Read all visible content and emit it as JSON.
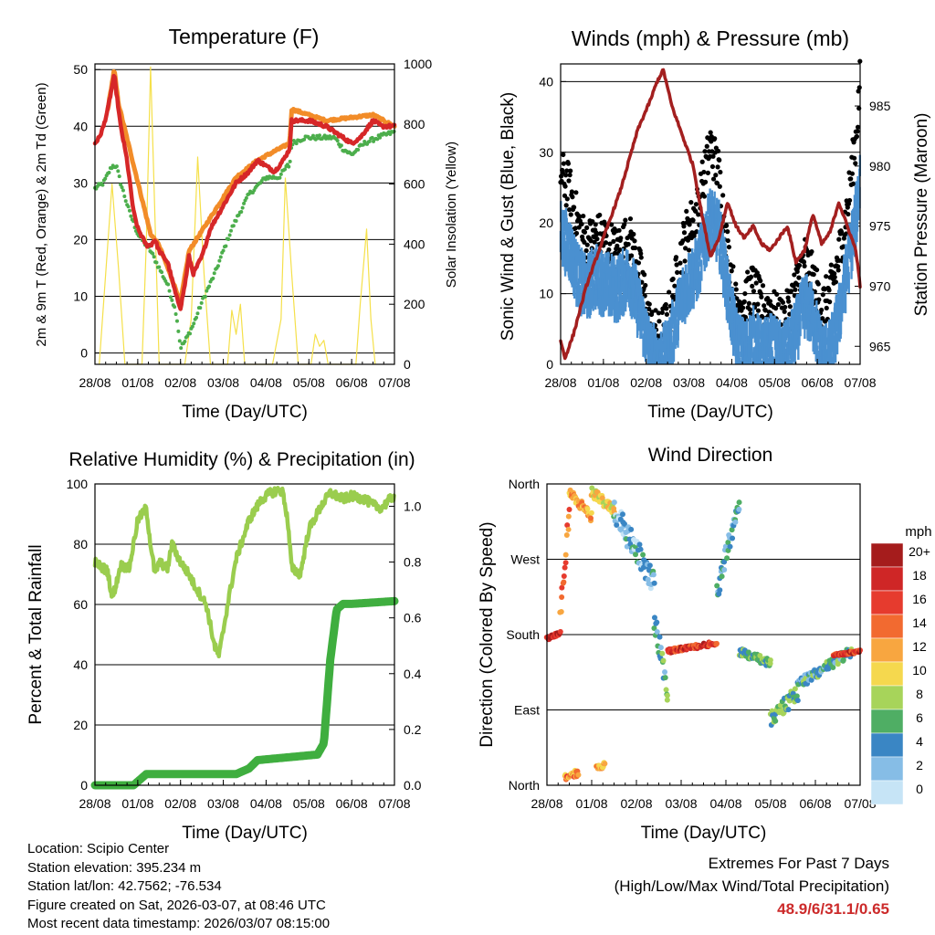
{
  "chart_data": [
    {
      "type": "line",
      "title": "Temperature (F)",
      "xlabel": "Time (Day/UTC)",
      "ylabel_left": "2m & 9m T (Red, Orange) & 2m Td (Green)",
      "ylabel_right": "Solar Insolation (Yellow)",
      "x_ticks": [
        "28/08",
        "01/08",
        "02/08",
        "03/08",
        "04/08",
        "05/08",
        "06/08",
        "07/08"
      ],
      "ylim_left": [
        -2,
        51
      ],
      "y_ticks_left": [
        0,
        10,
        20,
        30,
        40,
        50
      ],
      "ylim_right": [
        0,
        1000
      ],
      "y_ticks_right": [
        0,
        200,
        400,
        600,
        800,
        1000
      ],
      "series": [
        {
          "name": "2m T",
          "color": "#d62728",
          "axis": "left",
          "x": [
            0,
            0.1,
            0.2,
            0.3,
            0.45,
            0.55,
            0.6,
            0.75,
            0.9,
            1.0,
            1.2,
            1.3,
            1.4,
            1.5,
            1.7,
            1.8,
            1.9,
            2.0,
            2.1,
            2.2,
            2.3,
            2.5,
            2.7,
            3.0,
            3.3,
            3.6,
            3.8,
            4.0,
            4.2,
            4.4,
            4.55,
            4.6,
            5.0,
            5.4,
            5.6,
            5.8,
            6.0,
            6.2,
            6.5,
            6.7,
            7.0
          ],
          "y": [
            37,
            38,
            40,
            43,
            49,
            43,
            40,
            34,
            25,
            22,
            19,
            19,
            20,
            18,
            16,
            13,
            10,
            8,
            12,
            17,
            14,
            17,
            22,
            26,
            30,
            32,
            34,
            33,
            32,
            34,
            36,
            41,
            41,
            40,
            39,
            38,
            37,
            38,
            41,
            40,
            40
          ]
        },
        {
          "name": "9m T",
          "color": "#f28c28",
          "axis": "left",
          "x": [
            0.3,
            0.45,
            0.55,
            1.3,
            1.5,
            2.0,
            2.2,
            3.3,
            3.8,
            4.55,
            4.6,
            5.0,
            5.4,
            6.5,
            7.0
          ],
          "y": [
            43,
            50,
            44,
            21,
            19,
            9,
            18,
            31,
            34,
            37,
            43,
            42,
            41,
            42,
            40
          ]
        },
        {
          "name": "2m Td",
          "color": "#4cae4c",
          "axis": "left",
          "x": [
            0,
            0.2,
            0.4,
            0.5,
            0.6,
            0.8,
            1.0,
            1.3,
            1.5,
            1.7,
            1.9,
            2.0,
            2.1,
            2.3,
            2.5,
            2.8,
            3.2,
            3.6,
            4.0,
            4.3,
            4.5,
            4.55,
            4.6,
            4.9,
            5.2,
            5.6,
            5.8,
            6.0,
            6.3,
            6.6,
            7.0
          ],
          "y": [
            29,
            30,
            33,
            33,
            30,
            25,
            21,
            18,
            15,
            12,
            7,
            1,
            2,
            5,
            9,
            14,
            22,
            28,
            31,
            31,
            33,
            33,
            37,
            38,
            38,
            38,
            36,
            35,
            37,
            38,
            39
          ]
        },
        {
          "name": "Solar Insolation",
          "color": "#f5e04a",
          "axis": "right",
          "x": [
            0.1,
            0.25,
            0.4,
            0.55,
            0.7,
            1.1,
            1.2,
            1.3,
            1.4,
            1.5,
            1.6,
            2.1,
            2.25,
            2.4,
            2.55,
            2.7,
            3.1,
            3.2,
            3.3,
            3.4,
            3.5,
            4.15,
            4.35,
            4.45,
            4.6,
            4.75,
            5.05,
            5.15,
            5.25,
            5.35,
            5.45,
            6.1,
            6.2,
            6.35,
            6.45,
            6.55
          ],
          "y": [
            0,
            300,
            600,
            320,
            0,
            0,
            400,
            990,
            500,
            0,
            0,
            0,
            150,
            690,
            300,
            0,
            0,
            180,
            100,
            200,
            0,
            0,
            150,
            620,
            300,
            0,
            0,
            100,
            60,
            80,
            0,
            0,
            200,
            450,
            150,
            0
          ]
        }
      ]
    },
    {
      "type": "line",
      "title": "Winds (mph) & Pressure (mb)",
      "xlabel": "Time (Day/UTC)",
      "ylabel_left": "Sonic Wind & Gust (Blue, Black)",
      "ylabel_right": "Station Pressure (Maroon)",
      "x_ticks": [
        "28/08",
        "01/08",
        "02/08",
        "03/08",
        "04/08",
        "05/08",
        "06/08",
        "07/08"
      ],
      "ylim_left": [
        0,
        42.5
      ],
      "y_ticks_left": [
        0,
        10,
        20,
        30,
        40
      ],
      "ylim_right": [
        963.5,
        988.5
      ],
      "y_ticks_right": [
        965,
        970,
        975,
        980,
        985
      ],
      "series": [
        {
          "name": "Sonic Wind",
          "color": "#4a90d0",
          "axis": "left",
          "x": [
            0,
            0.2,
            0.4,
            0.6,
            0.8,
            1.0,
            1.3,
            1.6,
            1.9,
            2.1,
            2.3,
            2.5,
            2.7,
            2.9,
            3.2,
            3.5,
            3.7,
            3.9,
            4.1,
            4.3,
            4.5,
            4.7,
            4.9,
            5.1,
            5.3,
            5.5,
            5.7,
            5.9,
            6.1,
            6.3,
            6.5,
            6.7,
            6.9,
            7.0
          ],
          "y": [
            20,
            18,
            14,
            12,
            14,
            13,
            12,
            14,
            8,
            3,
            2,
            3,
            8,
            12,
            15,
            22,
            20,
            12,
            5,
            3,
            5,
            3,
            4,
            3,
            3,
            6,
            10,
            8,
            3,
            3,
            8,
            15,
            22,
            28
          ]
        },
        {
          "name": "Gust",
          "color": "#000000",
          "axis": "left",
          "x": [
            0,
            0.2,
            0.4,
            0.6,
            0.8,
            1.0,
            1.3,
            1.6,
            1.9,
            2.1,
            2.3,
            2.5,
            2.7,
            2.9,
            3.2,
            3.5,
            3.7,
            3.9,
            4.1,
            4.3,
            4.5,
            4.7,
            4.9,
            5.1,
            5.3,
            5.5,
            5.7,
            5.9,
            6.1,
            6.3,
            6.5,
            6.7,
            6.9,
            7.0
          ],
          "y": [
            27,
            25,
            20,
            17,
            18,
            18,
            16,
            18,
            12,
            5,
            4,
            6,
            12,
            18,
            22,
            31,
            27,
            16,
            8,
            9,
            11,
            8,
            8,
            6,
            7,
            11,
            15,
            12,
            8,
            10,
            15,
            22,
            32,
            40
          ]
        },
        {
          "name": "Station Pressure",
          "color": "#a31f1f",
          "axis": "right",
          "x": [
            0,
            0.1,
            0.3,
            0.6,
            1.0,
            1.4,
            1.8,
            2.1,
            2.25,
            2.4,
            2.6,
            2.9,
            3.1,
            3.3,
            3.5,
            3.7,
            3.9,
            4.1,
            4.3,
            4.5,
            4.7,
            4.9,
            5.1,
            5.3,
            5.5,
            5.7,
            5.9,
            6.1,
            6.3,
            6.5,
            6.7,
            6.9,
            7.0
          ],
          "y": [
            965.5,
            964,
            966,
            970,
            974,
            978,
            983,
            985.5,
            987,
            988,
            985,
            982,
            980,
            976,
            972.5,
            974,
            977,
            975,
            974,
            975,
            973.5,
            973,
            974,
            975,
            972,
            973,
            976,
            973.5,
            974.5,
            977,
            975,
            973,
            970
          ]
        }
      ]
    },
    {
      "type": "line",
      "title": "Relative Humidity (%) & Precipitation (in)",
      "xlabel": "Time (Day/UTC)",
      "ylabel_left": "Percent & Total Rainfall",
      "x_ticks": [
        "28/08",
        "01/08",
        "02/08",
        "03/08",
        "04/08",
        "05/08",
        "06/08",
        "07/08"
      ],
      "ylim_left": [
        0,
        100
      ],
      "y_ticks_left": [
        0,
        20,
        40,
        60,
        80,
        100
      ],
      "ylim_right": [
        0,
        1.08
      ],
      "y_ticks_right": [
        0.0,
        0.2,
        0.4,
        0.6,
        0.8,
        1.0
      ],
      "series": [
        {
          "name": "Relative Humidity",
          "color": "#9acd4e",
          "axis": "left",
          "x": [
            0,
            0.1,
            0.2,
            0.3,
            0.4,
            0.5,
            0.6,
            0.8,
            1.0,
            1.2,
            1.3,
            1.4,
            1.5,
            1.7,
            1.8,
            2.0,
            2.2,
            2.3,
            2.6,
            2.8,
            2.9,
            3.1,
            3.3,
            3.6,
            3.9,
            4.1,
            4.3,
            4.4,
            4.5,
            4.6,
            4.8,
            5.0,
            5.3,
            5.5,
            5.8,
            6.0,
            6.3,
            6.5,
            6.7,
            6.9,
            7.0
          ],
          "y": [
            74,
            73,
            72,
            71,
            62,
            67,
            73,
            72,
            88,
            92,
            80,
            70,
            74,
            72,
            80,
            74,
            70,
            67,
            60,
            46,
            43,
            60,
            75,
            88,
            95,
            97,
            98,
            97,
            88,
            72,
            70,
            85,
            93,
            97,
            95,
            96,
            95,
            93,
            92,
            95,
            96
          ]
        },
        {
          "name": "Total Precipitation",
          "color": "#3fae3f",
          "axis": "right",
          "x": [
            0,
            0.9,
            1.2,
            3.3,
            3.6,
            3.8,
            4.5,
            5.2,
            5.35,
            5.5,
            5.65,
            5.8,
            6.0,
            7.0
          ],
          "y": [
            0.0,
            0.0,
            0.04,
            0.04,
            0.06,
            0.09,
            0.1,
            0.11,
            0.15,
            0.45,
            0.63,
            0.65,
            0.65,
            0.66
          ]
        }
      ]
    },
    {
      "type": "scatter",
      "title": "Wind Direction",
      "xlabel": "Time (Day/UTC)",
      "ylabel": "Direction (Colored By Speed)",
      "x_ticks": [
        "28/08",
        "01/08",
        "02/08",
        "03/08",
        "04/08",
        "05/08",
        "06/08",
        "07/08"
      ],
      "y_ticks": [
        "North",
        "East",
        "South",
        "West",
        "North"
      ],
      "ylim": [
        0,
        360
      ],
      "colorbar": {
        "title": "mph",
        "labels": [
          "20+",
          "18",
          "16",
          "14",
          "12",
          "10",
          "8",
          "6",
          "4",
          "2",
          "0"
        ],
        "colors": [
          "#a51c1c",
          "#cf2626",
          "#e63b2e",
          "#f26a30",
          "#f8a640",
          "#f5d84e",
          "#a7d45a",
          "#4fae64",
          "#3a86c4",
          "#86bde6",
          "#c6e4f6"
        ]
      },
      "segments": [
        {
          "x0": 0.0,
          "x1": 0.3,
          "d0": 175,
          "d1": 182,
          "speed": 18,
          "spread": 4
        },
        {
          "x0": 0.3,
          "x1": 0.5,
          "d0": 200,
          "d1": 330,
          "speed": 14,
          "spread": 20
        },
        {
          "x0": 0.5,
          "x1": 1.0,
          "d0": 350,
          "d1": 320,
          "speed": 12,
          "spread": 12
        },
        {
          "x0": 1.0,
          "x1": 1.5,
          "d0": 350,
          "d1": 330,
          "speed": 10,
          "spread": 12
        },
        {
          "x0": 1.5,
          "x1": 2.4,
          "d0": 330,
          "d1": 240,
          "speed": 3,
          "spread": 30
        },
        {
          "x0": 2.4,
          "x1": 2.7,
          "d0": 200,
          "d1": 110,
          "speed": 5,
          "spread": 25
        },
        {
          "x0": 2.7,
          "x1": 3.8,
          "d0": 160,
          "d1": 170,
          "speed": 17,
          "spread": 5
        },
        {
          "x0": 3.8,
          "x1": 4.3,
          "d0": 230,
          "d1": 340,
          "speed": 4,
          "spread": 25
        },
        {
          "x0": 4.3,
          "x1": 5.0,
          "d0": 160,
          "d1": 145,
          "speed": 6,
          "spread": 10
        },
        {
          "x0": 5.0,
          "x1": 5.6,
          "d0": 80,
          "d1": 110,
          "speed": 6,
          "spread": 20
        },
        {
          "x0": 5.6,
          "x1": 6.8,
          "d0": 120,
          "d1": 160,
          "speed": 5,
          "spread": 12
        },
        {
          "x0": 6.4,
          "x1": 7.0,
          "d0": 155,
          "d1": 160,
          "speed": 17,
          "spread": 3
        },
        {
          "x0": 0.4,
          "x1": 0.7,
          "d0": 10,
          "d1": 15,
          "speed": 13,
          "spread": 8
        },
        {
          "x0": 1.1,
          "x1": 1.3,
          "d0": 20,
          "d1": 25,
          "speed": 12,
          "spread": 6
        }
      ]
    }
  ],
  "info": {
    "location": "Location: Scipio Center",
    "elevation": "Station elevation: 395.234 m",
    "latlon": "Station lat/lon: 42.7562; -76.534",
    "created": "Figure created on Sat, 2026-03-07, at 08:46 UTC",
    "recent": "Most recent data timestamp: 2026/03/07 08:15:00"
  },
  "extremes": {
    "title": "Extremes For Past 7 Days",
    "subtitle": "(High/Low/Max Wind/Total Precipitation)",
    "values": "48.9/6/31.1/0.65"
  }
}
